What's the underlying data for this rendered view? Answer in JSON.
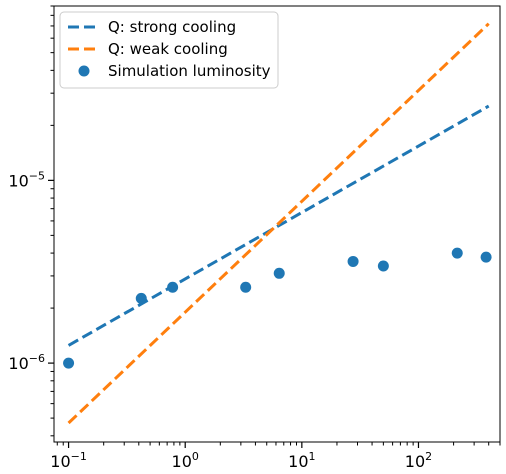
{
  "chart_data": {
    "type": "line",
    "xscale": "log",
    "yscale": "log",
    "xlim": [
      0.075,
      500
    ],
    "ylim": [
      3.7e-07,
      9e-05
    ],
    "x_ticks": [
      {
        "value": 0.1,
        "base": "10",
        "exp": "−1"
      },
      {
        "value": 1,
        "base": "10",
        "exp": "0"
      },
      {
        "value": 10,
        "base": "10",
        "exp": "1"
      },
      {
        "value": 100,
        "base": "10",
        "exp": "2"
      }
    ],
    "y_ticks": [
      {
        "value": 1e-06,
        "base": "10",
        "exp": "−6"
      },
      {
        "value": 1e-05,
        "base": "10",
        "exp": "−5"
      }
    ],
    "series": [
      {
        "name": "Q: strong cooling",
        "kind": "line",
        "style": "dashed",
        "color": "#1f77b4",
        "x": [
          0.1,
          400
        ],
        "y": [
          1.25e-06,
          2.55e-05
        ]
      },
      {
        "name": "Q: weak cooling",
        "kind": "line",
        "style": "dashed",
        "color": "#ff7f0e",
        "x": [
          0.1,
          400
        ],
        "y": [
          4.7e-07,
          7.2e-05
        ]
      },
      {
        "name": "Simulation luminosity",
        "kind": "scatter",
        "color": "#1f77b4",
        "x": [
          0.1,
          0.42,
          0.78,
          3.3,
          6.4,
          27.5,
          50,
          215,
          380
        ],
        "y": [
          1e-06,
          2.26e-06,
          2.6e-06,
          2.6e-06,
          3.1e-06,
          3.6e-06,
          3.4e-06,
          4e-06,
          3.8e-06
        ]
      }
    ],
    "legend": {
      "placement": "top-left"
    },
    "grid": false
  }
}
